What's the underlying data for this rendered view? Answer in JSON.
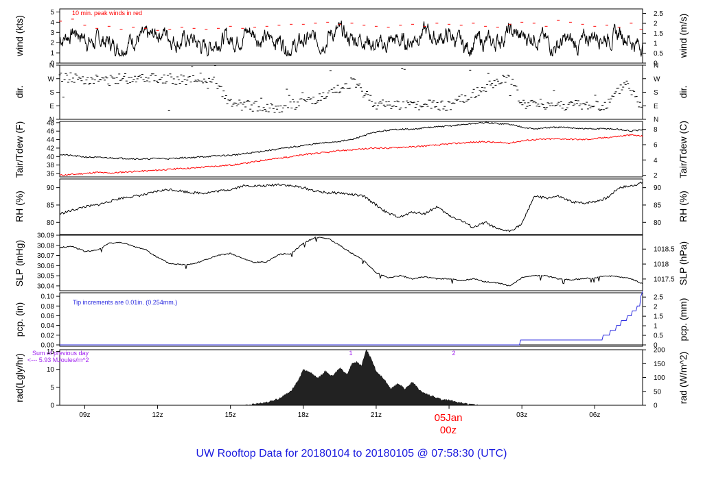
{
  "title": "UW Rooftop Data for 20180104  to  20180105 @ 07:58:30  (UTC)",
  "colors": {
    "title": "#1a1adf",
    "peak": "#ff0000",
    "dewpoint": "#ff0000",
    "precip": "#2a2adf",
    "radiation_note": "#a020f0",
    "date_marker": "#ff0000"
  },
  "x_axis": {
    "ticks": [
      "09z",
      "12z",
      "15z",
      "18z",
      "21z",
      "00z",
      "03z",
      "06z"
    ],
    "tick_hours": [
      9,
      12,
      15,
      18,
      21,
      24,
      27,
      30
    ],
    "range_hours": [
      7.97,
      31.97
    ],
    "date_label": "05Jan",
    "date_hour_label": "00z"
  },
  "panels": {
    "wind": {
      "ylabel_left": "wind (kts)",
      "ylabel_right": "wind (m/s)",
      "left_ticks": [
        "0",
        "1",
        "2",
        "3",
        "4",
        "5"
      ],
      "right_ticks": [
        "0",
        "0.5",
        "1",
        "1.5",
        "2",
        "2.5"
      ],
      "annotation": "10 min. peak winds in red"
    },
    "dir": {
      "ylabel_left": "dir.",
      "ylabel_right": "dir.",
      "ticks": [
        "N",
        "E",
        "S",
        "W",
        "N"
      ]
    },
    "temp": {
      "ylabel_left": "Tair/Tdew (F)",
      "ylabel_right": "Tair/Tdew (C)",
      "left_ticks": [
        "36",
        "38",
        "40",
        "42",
        "44",
        "46",
        "48"
      ],
      "right_ticks": [
        "2",
        "4",
        "6",
        "8"
      ]
    },
    "rh": {
      "ylabel_left": "RH (%)",
      "ylabel_right": "RH (%)",
      "left_ticks": [
        "80",
        "85",
        "90"
      ],
      "right_ticks": [
        "80",
        "85",
        "90"
      ]
    },
    "slp": {
      "ylabel_left": "SLP (inHg)",
      "ylabel_right": "SLP (hPa)",
      "left_ticks": [
        "30.04",
        "30.05",
        "30.06",
        "30.07",
        "30.08",
        "30.09"
      ],
      "right_ticks": [
        "1017.5",
        "1018",
        "1018.5"
      ]
    },
    "pcp": {
      "ylabel_left": "pcp. (in)",
      "ylabel_right": "pcp. (mm)",
      "left_ticks": [
        "0.00",
        "0.02",
        "0.04",
        "0.06",
        "0.08",
        "0.10"
      ],
      "right_ticks": [
        "0",
        "0.5",
        "1",
        "1.5",
        "2",
        "2.5"
      ],
      "annotation": "Tip increments are 0.01in. (0.254mm.)"
    },
    "rad": {
      "ylabel_left": "rad(Lgly/hr)",
      "ylabel_right": "rad (W/m^2)",
      "left_ticks": [
        "0",
        "5",
        "10",
        "15"
      ],
      "right_ticks": [
        "0",
        "50",
        "100",
        "150",
        "200"
      ],
      "note_line1": "Sum of previous day",
      "note_line2": "<--- 5.93 MJoules/m^2",
      "markers": [
        "1",
        "2"
      ]
    }
  },
  "chart_data": [
    {
      "type": "line",
      "panel": "wind",
      "ylim": [
        0,
        5.3
      ],
      "series": [
        {
          "name": "10 min. peak winds in red",
          "x": [
            8.0,
            8.5,
            9.0,
            9.5,
            10.0,
            10.5,
            11.0,
            11.5,
            12.0,
            12.5,
            13.0,
            13.5,
            14.0,
            14.5,
            15.0,
            15.5,
            16.0,
            16.5,
            17.0,
            17.5,
            18.0,
            18.5,
            19.0,
            19.5,
            20.0,
            20.5,
            21.0,
            21.5,
            22.0,
            22.5,
            23.0,
            23.5,
            24.0,
            24.5,
            25.0,
            25.5,
            26.0,
            26.5,
            27.0,
            27.5,
            28.0,
            28.5,
            29.0,
            29.5,
            30.0,
            30.5,
            31.0,
            31.5,
            31.9
          ],
          "values": [
            4.1,
            4.3,
            3.7,
            3.4,
            3.6,
            3.3,
            3.5,
            3.4,
            3.2,
            3.3,
            3.5,
            3.4,
            3.3,
            3.4,
            3.6,
            3.4,
            3.5,
            3.6,
            3.7,
            3.8,
            3.8,
            3.9,
            4.0,
            3.8,
            3.9,
            3.7,
            3.6,
            3.5,
            3.7,
            3.8,
            3.6,
            3.9,
            3.8,
            3.7,
            3.9,
            3.6,
            3.5,
            3.8,
            4.0,
            3.9,
            3.6,
            4.2,
            4.0,
            3.8,
            3.6,
            3.7,
            3.5,
            3.9,
            3.3
          ]
        }
      ]
    },
    {
      "type": "line",
      "panel": "rh",
      "ylim": [
        76.5,
        92.5
      ],
      "x": [
        8.0,
        8.5,
        9.0,
        9.5,
        10.0,
        10.5,
        11.0,
        11.5,
        12.0,
        12.5,
        13.0,
        13.5,
        14.0,
        14.5,
        15.0,
        15.5,
        16.0,
        16.5,
        17.0,
        17.5,
        18.0,
        18.5,
        19.0,
        19.5,
        20.0,
        20.5,
        21.0,
        21.5,
        22.0,
        22.5,
        23.0,
        23.5,
        24.0,
        24.5,
        25.0,
        25.5,
        26.0,
        26.5,
        27.0,
        27.5,
        28.0,
        28.5,
        29.0,
        29.5,
        30.0,
        30.5,
        31.0,
        31.5,
        31.97
      ],
      "values": [
        82.5,
        83.5,
        84.5,
        85.0,
        86.0,
        87.0,
        87.5,
        88.0,
        89.0,
        89.5,
        89.0,
        88.5,
        88.5,
        89.0,
        89.5,
        90.5,
        90.5,
        90.5,
        91.0,
        90.5,
        90.0,
        89.0,
        88.5,
        88.5,
        88.0,
        87.5,
        85.0,
        82.5,
        81.5,
        83.0,
        82.5,
        84.5,
        82.0,
        80.5,
        78.5,
        80.0,
        78.0,
        77.5,
        79.5,
        87.5,
        87.0,
        87.5,
        86.0,
        85.5,
        86.0,
        87.0,
        90.0,
        90.5,
        91.5
      ]
    },
    {
      "type": "line",
      "panel": "temp",
      "ylim": [
        35.2,
        48.3
      ],
      "x": [
        8.0,
        8.5,
        9.0,
        9.5,
        10.0,
        10.5,
        11.0,
        11.5,
        12.0,
        12.5,
        13.0,
        13.5,
        14.0,
        14.5,
        15.0,
        15.5,
        16.0,
        16.5,
        17.0,
        17.5,
        18.0,
        18.5,
        19.0,
        19.5,
        20.0,
        20.5,
        21.0,
        21.5,
        22.0,
        22.5,
        23.0,
        23.5,
        24.0,
        24.5,
        25.0,
        25.5,
        26.0,
        26.5,
        27.0,
        27.5,
        28.0,
        28.5,
        29.0,
        29.5,
        30.0,
        30.5,
        31.0,
        31.5,
        31.97
      ],
      "series": [
        {
          "name": "Tair",
          "values": [
            40.5,
            40.2,
            39.9,
            39.8,
            39.7,
            39.6,
            39.5,
            39.4,
            39.6,
            39.5,
            39.7,
            39.8,
            40.0,
            40.2,
            40.3,
            40.6,
            41.0,
            41.4,
            41.8,
            42.2,
            42.6,
            43.0,
            43.3,
            43.6,
            44.0,
            45.0,
            45.8,
            46.2,
            46.5,
            46.4,
            46.8,
            47.0,
            47.2,
            47.5,
            47.8,
            48.0,
            47.8,
            47.6,
            47.0,
            46.5,
            46.8,
            46.9,
            46.8,
            46.6,
            46.5,
            46.6,
            46.4,
            46.0,
            46.3
          ]
        },
        {
          "name": "Tdew",
          "values": [
            35.6,
            35.8,
            36.0,
            36.3,
            36.1,
            36.3,
            36.5,
            36.6,
            36.8,
            37.0,
            37.2,
            37.3,
            37.6,
            37.8,
            38.0,
            38.3,
            38.8,
            39.3,
            39.6,
            40.0,
            40.4,
            40.8,
            41.0,
            41.4,
            41.6,
            41.8,
            42.0,
            42.0,
            42.2,
            42.3,
            42.5,
            42.7,
            43.0,
            43.2,
            43.4,
            43.5,
            43.3,
            43.2,
            43.7,
            44.0,
            44.1,
            44.2,
            44.1,
            44.0,
            44.2,
            44.5,
            44.8,
            45.1,
            44.8
          ]
        }
      ]
    },
    {
      "type": "line",
      "panel": "slp",
      "ylim": [
        30.0352,
        30.09
      ],
      "x": [
        8.0,
        8.5,
        9.0,
        9.5,
        10.0,
        10.5,
        11.0,
        11.5,
        12.0,
        12.5,
        13.0,
        13.5,
        14.0,
        14.5,
        15.0,
        15.5,
        16.0,
        16.5,
        17.0,
        17.5,
        18.0,
        18.5,
        19.0,
        19.5,
        20.0,
        20.5,
        21.0,
        21.5,
        22.0,
        22.5,
        23.0,
        23.5,
        24.0,
        24.5,
        25.0,
        25.5,
        26.0,
        26.5,
        27.0,
        27.5,
        28.0,
        28.5,
        29.0,
        29.5,
        30.0,
        30.5,
        31.0,
        31.5,
        31.97
      ],
      "values": [
        30.078,
        30.079,
        30.074,
        30.075,
        30.082,
        30.083,
        30.079,
        30.076,
        30.068,
        30.062,
        30.061,
        30.062,
        30.066,
        30.07,
        30.072,
        30.067,
        30.063,
        30.064,
        30.071,
        30.072,
        30.082,
        30.088,
        30.087,
        30.08,
        30.072,
        30.065,
        30.053,
        30.048,
        30.05,
        30.047,
        30.049,
        30.047,
        30.047,
        30.045,
        30.047,
        30.044,
        30.043,
        30.04,
        30.048,
        30.05,
        30.05,
        30.047,
        30.046,
        30.047,
        30.048,
        30.05,
        30.049,
        30.047,
        30.042
      ]
    },
    {
      "type": "line",
      "panel": "pcp",
      "ylim": [
        0,
        0.11
      ],
      "x": [
        7.97,
        26.9,
        26.95,
        30.3,
        30.35,
        30.6,
        30.65,
        30.85,
        30.9,
        31.05,
        31.1,
        31.3,
        31.35,
        31.5,
        31.55,
        31.7,
        31.75,
        31.85,
        31.9,
        31.97
      ],
      "values": [
        0.0,
        0.0,
        0.01,
        0.01,
        0.02,
        0.02,
        0.03,
        0.03,
        0.04,
        0.04,
        0.05,
        0.05,
        0.06,
        0.06,
        0.07,
        0.07,
        0.08,
        0.08,
        0.1,
        0.11
      ]
    },
    {
      "type": "area",
      "panel": "rad",
      "ylim": [
        0,
        15.5
      ],
      "x": [
        15.6,
        16.0,
        16.5,
        17.0,
        17.5,
        17.8,
        18.0,
        18.3,
        18.6,
        18.9,
        19.2,
        19.5,
        19.8,
        20.0,
        20.2,
        20.4,
        20.6,
        20.8,
        21.0,
        21.3,
        21.6,
        21.9,
        22.2,
        22.5,
        22.8,
        23.1,
        23.4,
        23.7,
        24.0,
        24.3,
        24.6,
        24.9,
        25.2
      ],
      "values": [
        0.0,
        0.3,
        0.8,
        1.8,
        4.0,
        7.0,
        10.0,
        9.0,
        7.5,
        9.5,
        8.0,
        10.5,
        8.5,
        11.5,
        12.0,
        11.0,
        15.5,
        13.0,
        9.5,
        7.5,
        4.5,
        6.0,
        4.5,
        6.5,
        4.0,
        3.0,
        2.3,
        1.5,
        1.5,
        0.9,
        0.5,
        0.2,
        0.0
      ]
    }
  ]
}
